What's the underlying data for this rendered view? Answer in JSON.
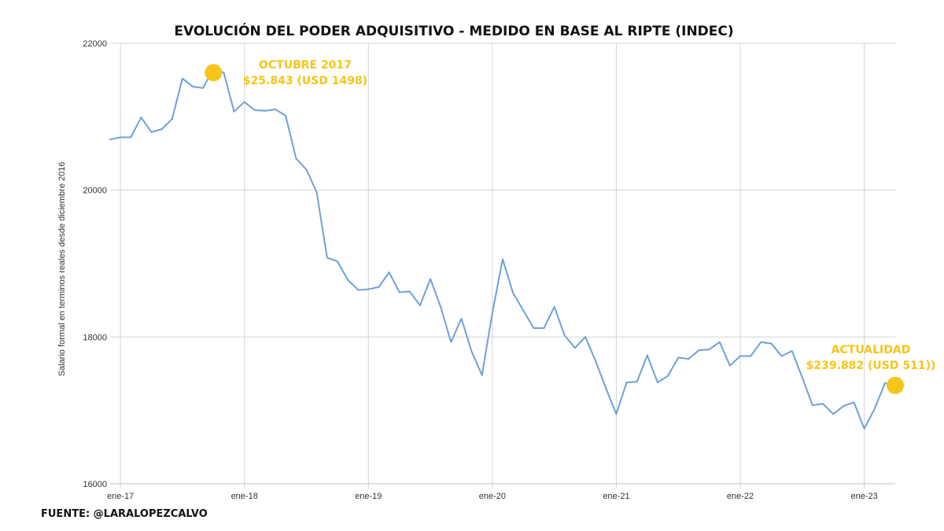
{
  "chart_data": {
    "type": "line",
    "title": "EVOLUCIÓN DEL PODER ADQUISITIVO - MEDIDO EN BASE AL RIPTE (INDEC)",
    "xlabel": "",
    "ylabel": "Salario formal en terminos reales desde diciembre 2016",
    "ylim": [
      16000,
      22000
    ],
    "yticks": [
      16000,
      18000,
      20000,
      22000
    ],
    "xticks": [
      "ene-17",
      "ene-18",
      "ene-19",
      "ene-20",
      "ene-21",
      "ene-22",
      "ene-23"
    ],
    "grid": true,
    "line_color": "#6fa0d8",
    "highlight_color": "#f5c518",
    "series": [
      {
        "x": [
          "2016-12",
          "2017-01",
          "2017-02",
          "2017-03",
          "2017-04",
          "2017-05",
          "2017-06",
          "2017-07",
          "2017-08",
          "2017-09",
          "2017-10",
          "2017-11",
          "2017-12",
          "2018-01",
          "2018-02",
          "2018-03",
          "2018-04",
          "2018-05",
          "2018-06",
          "2018-07",
          "2018-08",
          "2018-09",
          "2018-10",
          "2018-11",
          "2018-12",
          "2019-01",
          "2019-02",
          "2019-03",
          "2019-04",
          "2019-05",
          "2019-06",
          "2019-07",
          "2019-08",
          "2019-09",
          "2019-10",
          "2019-11",
          "2019-12",
          "2020-01",
          "2020-02",
          "2020-03",
          "2020-04",
          "2020-05",
          "2020-06",
          "2020-07",
          "2020-08",
          "2020-09",
          "2020-10",
          "2020-11",
          "2020-12",
          "2021-01",
          "2021-02",
          "2021-03",
          "2021-04",
          "2021-05",
          "2021-06",
          "2021-07",
          "2021-08",
          "2021-09",
          "2021-10",
          "2021-11",
          "2021-12",
          "2022-01",
          "2022-02",
          "2022-03",
          "2022-04",
          "2022-05",
          "2022-06",
          "2022-07",
          "2022-08",
          "2022-09",
          "2022-10",
          "2022-11",
          "2022-12",
          "2023-01",
          "2023-02",
          "2023-03",
          "2023-04"
        ],
        "values": [
          20690,
          20720,
          20720,
          20990,
          20790,
          20830,
          20970,
          21520,
          21410,
          21390,
          21660,
          21600,
          21070,
          21200,
          21090,
          21080,
          21100,
          21010,
          20430,
          20280,
          19970,
          19080,
          19030,
          18780,
          18640,
          18650,
          18680,
          18880,
          18610,
          18620,
          18430,
          18790,
          18410,
          17930,
          18250,
          17800,
          17480,
          18330,
          19060,
          18600,
          18360,
          18120,
          18120,
          18410,
          18020,
          17850,
          18000,
          17670,
          17300,
          16950,
          17380,
          17390,
          17750,
          17380,
          17470,
          17720,
          17700,
          17820,
          17830,
          17930,
          17610,
          17740,
          17740,
          17930,
          17910,
          17740,
          17810,
          17450,
          17070,
          17090,
          16950,
          17060,
          17110,
          16750,
          17020,
          17370,
          17340
        ]
      }
    ],
    "annotations": [
      {
        "x": "2017-10",
        "y": 21600,
        "label_line1": "OCTUBRE 2017",
        "label_line2": "$25.843 (USD 1498)"
      },
      {
        "x": "2023-04",
        "y": 17340,
        "label_line1": "ACTUALIDAD",
        "label_line2": "$239.882 (USD 511))"
      }
    ]
  },
  "source_text": "FUENTE: @LARALOPEZCALVO"
}
